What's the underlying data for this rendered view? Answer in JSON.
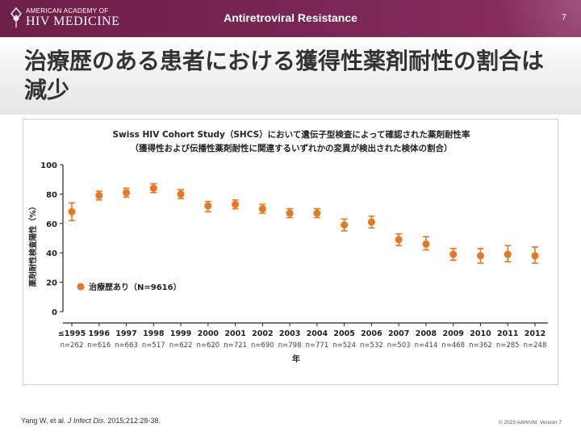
{
  "header": {
    "logo_line1": "AMERICAN ACADEMY OF",
    "logo_line2": "HIV MEDICINE",
    "section_title": "Antiretroviral Resistance",
    "page_number": "7",
    "bar_color": "#7a2555"
  },
  "slide": {
    "title": "治療歴のある患者における獲得性薬剤耐性の割合は減少"
  },
  "chart_data": {
    "type": "scatter",
    "title": "Swiss HIV Cohort Study（SHCS）において遺伝子型検査によって確認された薬剤耐性率",
    "subtitle": "（獲得性および伝播性薬剤耐性に関連するいずれかの変異が検出された検体の割合）",
    "xlabel": "年",
    "ylabel": "薬剤耐性検査陽性（%）",
    "ylim": [
      0,
      100
    ],
    "yticks": [
      0,
      20,
      40,
      60,
      80,
      100
    ],
    "categories": [
      "≤1995",
      "1996",
      "1997",
      "1998",
      "1999",
      "2000",
      "2001",
      "2002",
      "2003",
      "2004",
      "2005",
      "2006",
      "2007",
      "2008",
      "2009",
      "2010",
      "2011",
      "2012"
    ],
    "n_labels": [
      "n=262",
      "n=616",
      "n=663",
      "n=517",
      "n=622",
      "n=620",
      "n=721",
      "n=690",
      "n=798",
      "n=771",
      "n=524",
      "n=532",
      "n=503",
      "n=414",
      "n=468",
      "n=362",
      "n=285",
      "n=248"
    ],
    "series": [
      {
        "name": "治療歴あり（N=9616）",
        "color": "#e87722",
        "values": [
          68,
          79,
          81,
          84,
          80,
          72,
          73,
          70,
          67,
          67,
          59,
          61,
          49,
          46,
          39,
          38,
          39,
          38
        ],
        "err_low": [
          62,
          76,
          78,
          81,
          77,
          68,
          70,
          67,
          64,
          64,
          55,
          57,
          45,
          42,
          35,
          33,
          34,
          33
        ],
        "err_high": [
          74,
          82,
          84,
          87,
          83,
          75,
          76,
          73,
          70,
          70,
          63,
          65,
          53,
          51,
          43,
          43,
          45,
          44
        ]
      }
    ],
    "legend_position": "bottom-left",
    "grid": false
  },
  "footer": {
    "citation_authors": "Yang W, et al. ",
    "citation_journal": "J Infect Dis",
    "citation_rest": ". 2015;212:28-38.",
    "copyright": "© 2023 AAHIVM. Version 7"
  }
}
